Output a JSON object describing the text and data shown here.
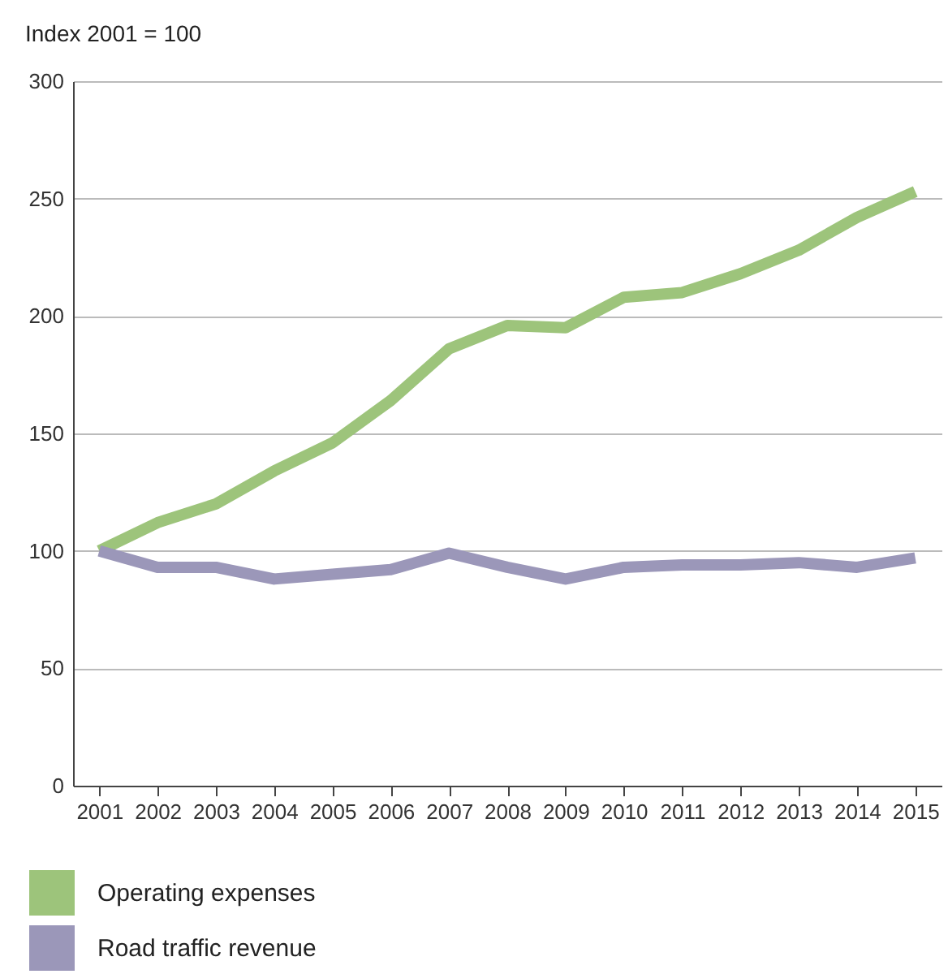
{
  "chart_data": {
    "type": "line",
    "ylabel": "Index 2001 = 100",
    "categories": [
      "2001",
      "2002",
      "2003",
      "2004",
      "2005",
      "2006",
      "2007",
      "2008",
      "2009",
      "2010",
      "2011",
      "2012",
      "2013",
      "2014",
      "2015"
    ],
    "series": [
      {
        "name": "Operating expenses",
        "color": "#9dc47b",
        "values": [
          100,
          112,
          120,
          134,
          146,
          164,
          186,
          196,
          195,
          208,
          210,
          218,
          228,
          242,
          253
        ]
      },
      {
        "name": "Road traffic revenue",
        "color": "#9b97b9",
        "values": [
          100,
          93,
          93,
          88,
          90,
          92,
          99,
          93,
          88,
          93,
          94,
          94,
          95,
          93,
          97
        ]
      }
    ],
    "ylim": [
      0,
      300
    ],
    "yticks": [
      0,
      50,
      100,
      150,
      200,
      250,
      300
    ],
    "grid": "y",
    "legend": "bottom",
    "marker": "none",
    "line_style": "solid"
  }
}
